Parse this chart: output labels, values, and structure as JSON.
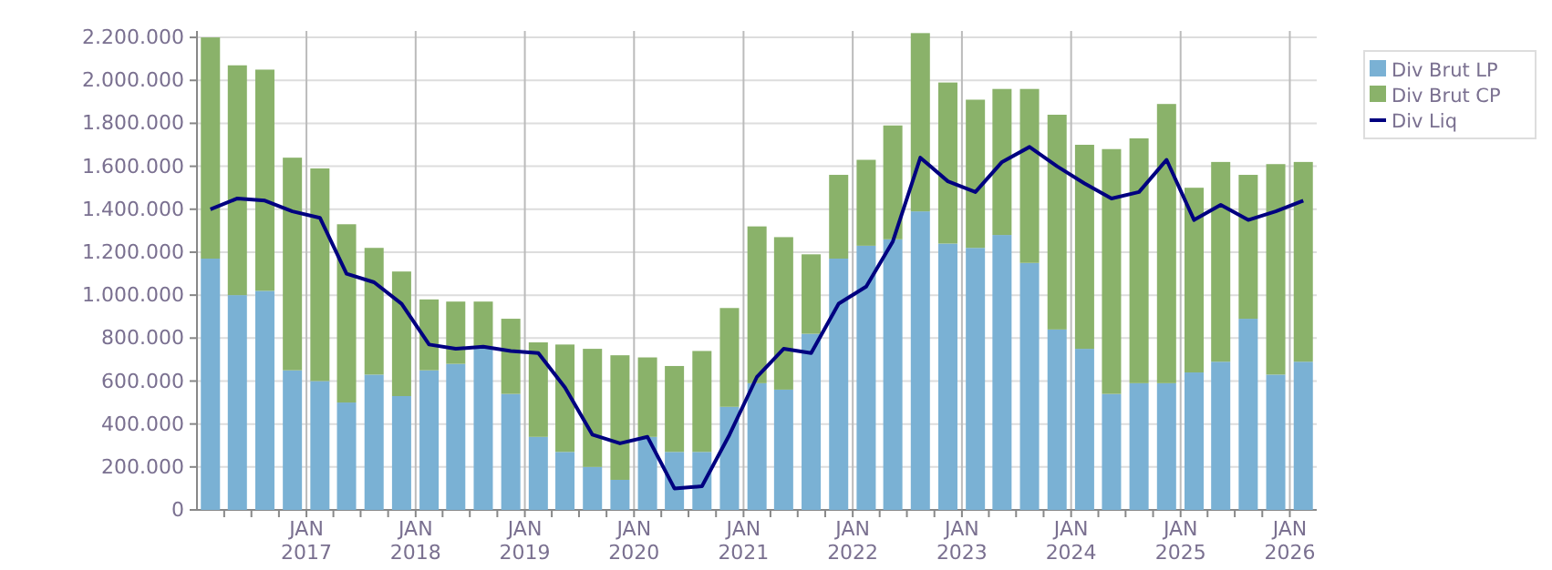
{
  "chart_data": {
    "type": "bar",
    "stacked": true,
    "x": [
      "2016-02-15",
      "2016-05-15",
      "2016-08-15",
      "2016-11-15",
      "2017-02-15",
      "2017-05-15",
      "2017-08-15",
      "2017-11-15",
      "2018-02-15",
      "2018-05-15",
      "2018-08-15",
      "2018-11-15",
      "2019-02-15",
      "2019-05-15",
      "2019-08-15",
      "2019-11-15",
      "2020-02-15",
      "2020-05-15",
      "2020-08-15",
      "2020-11-15",
      "2021-02-15",
      "2021-05-15",
      "2021-08-15",
      "2021-11-15",
      "2022-02-15",
      "2022-05-15",
      "2022-08-15",
      "2022-11-15",
      "2023-02-15",
      "2023-05-15",
      "2023-08-15",
      "2023-11-15",
      "2024-02-15",
      "2024-05-15",
      "2024-08-15",
      "2024-11-15",
      "2025-02-15",
      "2025-05-15",
      "2025-08-15",
      "2025-11-15",
      "2026-02-15"
    ],
    "series": [
      {
        "name": "Div Brut LP",
        "color": "#7ab1d4",
        "values": [
          1170000,
          1000000,
          1020000,
          650000,
          600000,
          500000,
          630000,
          530000,
          650000,
          680000,
          760000,
          540000,
          340000,
          270000,
          200000,
          140000,
          340000,
          270000,
          270000,
          480000,
          590000,
          560000,
          820000,
          1170000,
          1230000,
          1260000,
          1390000,
          1240000,
          1220000,
          1280000,
          1150000,
          840000,
          750000,
          540000,
          590000,
          590000,
          640000,
          690000,
          890000,
          630000,
          690000
        ]
      },
      {
        "name": "Div Brut CP",
        "color": "#8ab26a",
        "values": [
          1030000,
          1070000,
          1030000,
          990000,
          990000,
          830000,
          590000,
          580000,
          330000,
          290000,
          210000,
          350000,
          440000,
          500000,
          550000,
          580000,
          370000,
          400000,
          470000,
          460000,
          730000,
          710000,
          370000,
          390000,
          400000,
          530000,
          830000,
          750000,
          690000,
          680000,
          810000,
          1000000,
          950000,
          1140000,
          1140000,
          1300000,
          860000,
          930000,
          670000,
          980000,
          930000
        ]
      },
      {
        "name": "Div Liq",
        "type": "line",
        "color": "#000080",
        "values": [
          1400000,
          1450000,
          1440000,
          1390000,
          1360000,
          1100000,
          1060000,
          960000,
          770000,
          750000,
          760000,
          740000,
          730000,
          570000,
          350000,
          310000,
          340000,
          100000,
          110000,
          350000,
          620000,
          750000,
          730000,
          960000,
          1040000,
          1250000,
          1640000,
          1530000,
          1480000,
          1620000,
          1690000,
          1600000,
          1520000,
          1450000,
          1480000,
          1630000,
          1350000,
          1420000,
          1350000,
          1390000,
          1440000
        ]
      }
    ],
    "ylim": [
      0,
      2230000
    ],
    "yticks": [
      {
        "value": 0,
        "label": "0"
      },
      {
        "value": 200000,
        "label": "200.000"
      },
      {
        "value": 400000,
        "label": "400.000"
      },
      {
        "value": 600000,
        "label": "600.000"
      },
      {
        "value": 800000,
        "label": "800.000"
      },
      {
        "value": 1000000,
        "label": "1.000.000"
      },
      {
        "value": 1200000,
        "label": "1.200.000"
      },
      {
        "value": 1400000,
        "label": "1.400.000"
      },
      {
        "value": 1600000,
        "label": "1.600.000"
      },
      {
        "value": 1800000,
        "label": "1.800.000"
      },
      {
        "value": 2000000,
        "label": "2.000.000"
      },
      {
        "value": 2200000,
        "label": "2.200.000"
      }
    ],
    "xlim": [
      "2016-01-01",
      "2026-04-01"
    ],
    "xticks": [
      {
        "value": "2016-04-01",
        "label": null
      },
      {
        "value": "2016-07-01",
        "label": null
      },
      {
        "value": "2016-10-01",
        "label": null
      },
      {
        "value": "2017-01-01",
        "label": "JAN 2017"
      },
      {
        "value": "2017-04-01",
        "label": null
      },
      {
        "value": "2017-07-01",
        "label": null
      },
      {
        "value": "2017-10-01",
        "label": null
      },
      {
        "value": "2018-01-01",
        "label": "JAN 2018"
      },
      {
        "value": "2018-04-01",
        "label": null
      },
      {
        "value": "2018-07-01",
        "label": null
      },
      {
        "value": "2018-10-01",
        "label": null
      },
      {
        "value": "2019-01-01",
        "label": "JAN 2019"
      },
      {
        "value": "2019-04-01",
        "label": null
      },
      {
        "value": "2019-07-01",
        "label": null
      },
      {
        "value": "2019-10-01",
        "label": null
      },
      {
        "value": "2020-01-01",
        "label": "JAN 2020"
      },
      {
        "value": "2020-04-01",
        "label": null
      },
      {
        "value": "2020-07-01",
        "label": null
      },
      {
        "value": "2020-10-01",
        "label": null
      },
      {
        "value": "2021-01-01",
        "label": "JAN 2021"
      },
      {
        "value": "2021-04-01",
        "label": null
      },
      {
        "value": "2021-07-01",
        "label": null
      },
      {
        "value": "2021-10-01",
        "label": null
      },
      {
        "value": "2022-01-01",
        "label": "JAN 2022"
      },
      {
        "value": "2022-04-01",
        "label": null
      },
      {
        "value": "2022-07-01",
        "label": null
      },
      {
        "value": "2022-10-01",
        "label": null
      },
      {
        "value": "2023-01-01",
        "label": "JAN 2023"
      },
      {
        "value": "2023-04-01",
        "label": null
      },
      {
        "value": "2023-07-01",
        "label": null
      },
      {
        "value": "2023-10-01",
        "label": null
      },
      {
        "value": "2024-01-01",
        "label": "JAN 2024"
      },
      {
        "value": "2024-04-01",
        "label": null
      },
      {
        "value": "2024-07-01",
        "label": null
      },
      {
        "value": "2024-10-01",
        "label": null
      },
      {
        "value": "2025-01-01",
        "label": "JAN 2025"
      },
      {
        "value": "2025-04-01",
        "label": null
      },
      {
        "value": "2025-07-01",
        "label": null
      },
      {
        "value": "2025-10-01",
        "label": null
      },
      {
        "value": "2026-01-01",
        "label": "JAN 2026"
      }
    ],
    "grid": true,
    "legend": "top right",
    "marker": "none",
    "line_style": "solid"
  }
}
